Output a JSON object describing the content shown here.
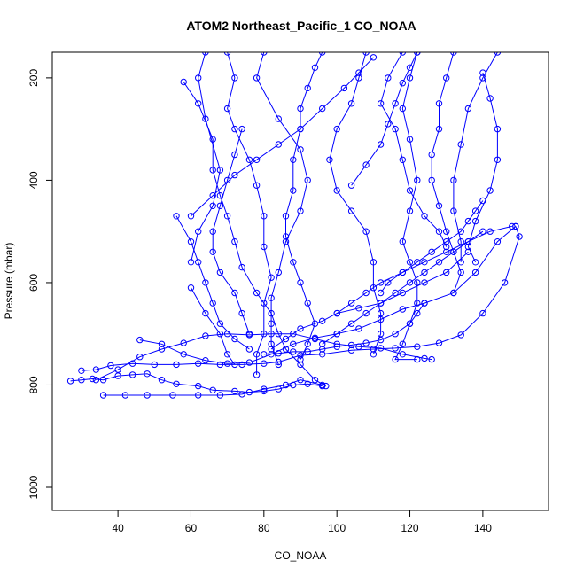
{
  "chart_data": {
    "type": "line",
    "title": "ATOM2 Northeast_Pacific_1 CO_NOAA",
    "xlabel": "CO_NOAA",
    "ylabel": "Pressure (mbar)",
    "xlim": [
      22,
      158
    ],
    "ylim": [
      1045,
      150
    ],
    "y_reversed": true,
    "x_ticks": [
      40,
      60,
      80,
      100,
      120,
      140
    ],
    "y_ticks": [
      200,
      400,
      600,
      800,
      1000
    ],
    "grid": false,
    "legend": "none",
    "color": "#0000ff",
    "series": [
      {
        "points": [
          [
            27,
            792
          ],
          [
            30,
            790
          ],
          [
            33,
            788
          ],
          [
            36,
            790
          ],
          [
            40,
            782
          ],
          [
            44,
            780
          ],
          [
            48,
            778
          ],
          [
            52,
            790
          ],
          [
            56,
            798
          ],
          [
            62,
            802
          ],
          [
            66,
            810
          ],
          [
            72,
            812
          ],
          [
            76,
            814
          ],
          [
            80,
            812
          ],
          [
            84,
            808
          ],
          [
            88,
            800
          ],
          [
            92,
            798
          ],
          [
            96,
            802
          ]
        ]
      },
      {
        "points": [
          [
            30,
            772
          ],
          [
            34,
            770
          ],
          [
            38,
            762
          ],
          [
            44,
            758
          ],
          [
            50,
            760
          ],
          [
            56,
            760
          ],
          [
            62,
            758
          ],
          [
            68,
            760
          ],
          [
            74,
            760
          ],
          [
            80,
            758
          ],
          [
            84,
            755
          ],
          [
            90,
            742
          ],
          [
            96,
            740
          ],
          [
            104,
            732
          ],
          [
            110,
            730
          ],
          [
            116,
            728
          ],
          [
            122,
            725
          ],
          [
            128,
            718
          ],
          [
            134,
            702
          ],
          [
            140,
            660
          ],
          [
            146,
            600
          ],
          [
            150,
            510
          ],
          [
            149,
            490
          ]
        ]
      },
      {
        "points": [
          [
            36,
            820
          ],
          [
            42,
            820
          ],
          [
            48,
            820
          ],
          [
            55,
            820
          ],
          [
            62,
            820
          ],
          [
            68,
            820
          ],
          [
            74,
            818
          ],
          [
            80,
            808
          ],
          [
            86,
            800
          ],
          [
            90,
            790
          ],
          [
            96,
            800
          ]
        ]
      },
      {
        "points": [
          [
            46,
            712
          ],
          [
            52,
            720
          ],
          [
            58,
            740
          ],
          [
            64,
            752
          ],
          [
            70,
            758
          ],
          [
            76,
            756
          ],
          [
            82,
            740
          ],
          [
            88,
            720
          ],
          [
            94,
            708
          ],
          [
            100,
            700
          ],
          [
            106,
            690
          ],
          [
            112,
            672
          ],
          [
            118,
            652
          ],
          [
            124,
            640
          ],
          [
            132,
            620
          ],
          [
            138,
            580
          ],
          [
            144,
            520
          ],
          [
            149,
            490
          ]
        ]
      },
      {
        "points": [
          [
            34,
            790
          ],
          [
            40,
            770
          ],
          [
            46,
            745
          ],
          [
            52,
            730
          ],
          [
            58,
            718
          ],
          [
            64,
            704
          ],
          [
            70,
            700
          ],
          [
            76,
            702
          ],
          [
            82,
            700
          ],
          [
            88,
            700
          ],
          [
            94,
            710
          ],
          [
            100,
            720
          ],
          [
            106,
            725
          ],
          [
            112,
            728
          ],
          [
            118,
            740
          ],
          [
            124,
            748
          ],
          [
            126,
            750
          ]
        ]
      },
      {
        "points": [
          [
            58,
            208
          ],
          [
            62,
            250
          ],
          [
            66,
            320
          ],
          [
            66,
            380
          ],
          [
            68,
            430
          ],
          [
            70,
            470
          ],
          [
            72,
            520
          ],
          [
            74,
            570
          ],
          [
            78,
            620
          ],
          [
            82,
            660
          ],
          [
            84,
            700
          ],
          [
            86,
            730
          ],
          [
            90,
            760
          ],
          [
            94,
            790
          ],
          [
            97,
            802
          ]
        ]
      },
      {
        "points": [
          [
            64,
            150
          ],
          [
            62,
            200
          ],
          [
            64,
            280
          ],
          [
            68,
            380
          ],
          [
            66,
            450
          ],
          [
            62,
            500
          ],
          [
            60,
            560
          ],
          [
            60,
            610
          ],
          [
            64,
            660
          ],
          [
            68,
            700
          ],
          [
            70,
            740
          ],
          [
            72,
            760
          ]
        ]
      },
      {
        "points": [
          [
            70,
            150
          ],
          [
            72,
            200
          ],
          [
            70,
            260
          ],
          [
            72,
            300
          ],
          [
            76,
            360
          ],
          [
            78,
            410
          ],
          [
            80,
            470
          ],
          [
            80,
            530
          ],
          [
            82,
            590
          ],
          [
            80,
            640
          ],
          [
            80,
            700
          ],
          [
            78,
            740
          ],
          [
            78,
            780
          ]
        ]
      },
      {
        "points": [
          [
            80,
            150
          ],
          [
            78,
            200
          ],
          [
            84,
            280
          ],
          [
            90,
            340
          ],
          [
            92,
            400
          ],
          [
            90,
            460
          ],
          [
            86,
            520
          ],
          [
            84,
            580
          ],
          [
            82,
            630
          ],
          [
            82,
            680
          ],
          [
            82,
            720
          ],
          [
            84,
            760
          ]
        ]
      },
      {
        "points": [
          [
            96,
            150
          ],
          [
            94,
            180
          ],
          [
            92,
            220
          ],
          [
            90,
            260
          ],
          [
            90,
            300
          ],
          [
            88,
            360
          ],
          [
            88,
            420
          ],
          [
            86,
            470
          ],
          [
            86,
            510
          ],
          [
            88,
            560
          ],
          [
            90,
            600
          ],
          [
            92,
            640
          ],
          [
            94,
            680
          ],
          [
            92,
            720
          ],
          [
            90,
            750
          ]
        ]
      },
      {
        "points": [
          [
            108,
            150
          ],
          [
            106,
            200
          ],
          [
            104,
            250
          ],
          [
            100,
            300
          ],
          [
            98,
            360
          ],
          [
            100,
            420
          ],
          [
            104,
            460
          ],
          [
            108,
            500
          ],
          [
            110,
            560
          ],
          [
            110,
            610
          ],
          [
            112,
            660
          ],
          [
            112,
            700
          ],
          [
            110,
            740
          ]
        ]
      },
      {
        "points": [
          [
            122,
            150
          ],
          [
            120,
            200
          ],
          [
            118,
            260
          ],
          [
            120,
            320
          ],
          [
            122,
            400
          ],
          [
            120,
            460
          ],
          [
            118,
            520
          ],
          [
            120,
            560
          ],
          [
            122,
            600
          ],
          [
            122,
            640
          ],
          [
            120,
            680
          ],
          [
            118,
            720
          ],
          [
            116,
            750
          ],
          [
            122,
            750
          ]
        ]
      },
      {
        "points": [
          [
            132,
            150
          ],
          [
            130,
            200
          ],
          [
            128,
            250
          ],
          [
            128,
            300
          ],
          [
            126,
            350
          ],
          [
            126,
            400
          ],
          [
            128,
            450
          ],
          [
            130,
            500
          ],
          [
            132,
            540
          ],
          [
            134,
            580
          ],
          [
            132,
            620
          ]
        ]
      },
      {
        "points": [
          [
            144,
            150
          ],
          [
            140,
            200
          ],
          [
            136,
            260
          ],
          [
            134,
            330
          ],
          [
            132,
            400
          ],
          [
            132,
            460
          ],
          [
            134,
            520
          ],
          [
            134,
            560
          ]
        ]
      },
      {
        "points": [
          [
            140,
            190
          ],
          [
            142,
            240
          ],
          [
            144,
            300
          ],
          [
            144,
            360
          ],
          [
            142,
            420
          ],
          [
            138,
            480
          ],
          [
            136,
            530
          ],
          [
            138,
            560
          ]
        ]
      },
      {
        "points": [
          [
            118,
            150
          ],
          [
            114,
            200
          ],
          [
            112,
            250
          ],
          [
            116,
            300
          ],
          [
            118,
            360
          ],
          [
            120,
            420
          ],
          [
            124,
            470
          ],
          [
            128,
            500
          ],
          [
            130,
            530
          ]
        ]
      },
      {
        "points": [
          [
            56,
            470
          ],
          [
            60,
            520
          ],
          [
            62,
            560
          ],
          [
            64,
            600
          ],
          [
            66,
            640
          ],
          [
            68,
            680
          ],
          [
            72,
            710
          ],
          [
            76,
            730
          ]
        ]
      },
      {
        "points": [
          [
            74,
            300
          ],
          [
            72,
            350
          ],
          [
            70,
            400
          ],
          [
            68,
            450
          ],
          [
            66,
            500
          ],
          [
            66,
            540
          ],
          [
            68,
            580
          ],
          [
            72,
            620
          ],
          [
            74,
            660
          ],
          [
            76,
            700
          ]
        ]
      },
      {
        "points": [
          [
            100,
            660
          ],
          [
            104,
            640
          ],
          [
            108,
            620
          ],
          [
            112,
            600
          ],
          [
            118,
            580
          ],
          [
            124,
            560
          ],
          [
            130,
            540
          ],
          [
            136,
            520
          ],
          [
            142,
            500
          ],
          [
            148,
            490
          ]
        ]
      },
      {
        "points": [
          [
            82,
            730
          ],
          [
            86,
            710
          ],
          [
            90,
            690
          ],
          [
            96,
            675
          ],
          [
            100,
            660
          ],
          [
            106,
            650
          ],
          [
            112,
            640
          ],
          [
            118,
            620
          ],
          [
            124,
            600
          ],
          [
            130,
            580
          ],
          [
            136,
            540
          ]
        ]
      },
      {
        "points": [
          [
            80,
            740
          ],
          [
            84,
            738
          ],
          [
            88,
            735
          ],
          [
            92,
            735
          ],
          [
            96,
            730
          ],
          [
            100,
            725
          ],
          [
            104,
            722
          ],
          [
            108,
            718
          ],
          [
            112,
            712
          ],
          [
            116,
            700
          ],
          [
            120,
            680
          ],
          [
            122,
            660
          ],
          [
            124,
            640
          ]
        ]
      },
      {
        "points": [
          [
            60,
            470
          ],
          [
            66,
            430
          ],
          [
            72,
            390
          ],
          [
            78,
            360
          ],
          [
            84,
            330
          ],
          [
            90,
            300
          ],
          [
            96,
            260
          ],
          [
            102,
            220
          ],
          [
            106,
            190
          ],
          [
            110,
            160
          ]
        ]
      },
      {
        "points": [
          [
            104,
            410
          ],
          [
            108,
            370
          ],
          [
            112,
            330
          ],
          [
            114,
            290
          ],
          [
            116,
            250
          ],
          [
            118,
            210
          ],
          [
            120,
            180
          ],
          [
            122,
            150
          ]
        ]
      },
      {
        "points": [
          [
            96,
            720
          ],
          [
            100,
            700
          ],
          [
            104,
            680
          ],
          [
            108,
            660
          ],
          [
            112,
            640
          ],
          [
            116,
            620
          ],
          [
            120,
            600
          ],
          [
            124,
            580
          ],
          [
            128,
            560
          ],
          [
            132,
            540
          ],
          [
            136,
            520
          ],
          [
            140,
            500
          ]
        ]
      },
      {
        "points": [
          [
            112,
            620
          ],
          [
            114,
            600
          ],
          [
            118,
            580
          ],
          [
            122,
            560
          ],
          [
            126,
            540
          ],
          [
            130,
            520
          ],
          [
            134,
            500
          ],
          [
            136,
            480
          ],
          [
            138,
            460
          ],
          [
            140,
            440
          ]
        ]
      }
    ]
  }
}
